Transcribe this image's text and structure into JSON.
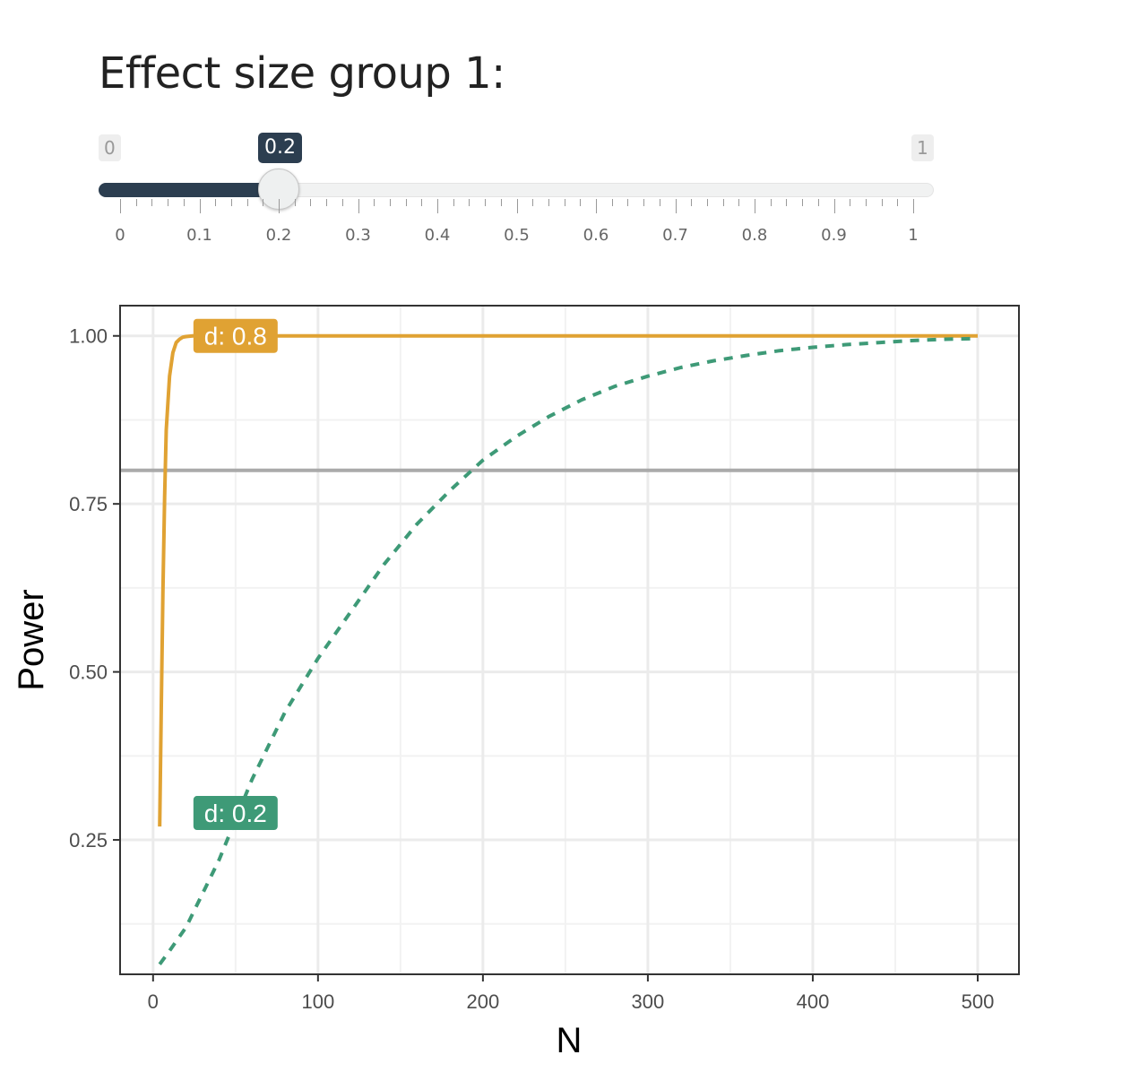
{
  "control": {
    "label": "Effect size group 1:",
    "min_label": "0",
    "max_label": "1",
    "value_label": "0.2",
    "min": 0,
    "max": 1,
    "value": 0.2,
    "tick_labels": [
      "0",
      "0.1",
      "0.2",
      "0.3",
      "0.4",
      "0.5",
      "0.6",
      "0.7",
      "0.8",
      "0.9",
      "1"
    ],
    "fill_color": "#2c3e50"
  },
  "chart_data": {
    "type": "line",
    "title": "",
    "xlabel": "N",
    "ylabel": "Power",
    "xlim": [
      -20,
      525
    ],
    "ylim": [
      0.05,
      1.045
    ],
    "x_ticks": [
      0,
      100,
      200,
      300,
      400,
      500
    ],
    "x_tick_labels": [
      "0",
      "100",
      "200",
      "300",
      "400",
      "500"
    ],
    "y_ticks": [
      0.25,
      0.5,
      0.75,
      1.0
    ],
    "y_tick_labels": [
      "0.25",
      "0.50",
      "0.75",
      "1.00"
    ],
    "grid": true,
    "reference_line": {
      "y": 0.8,
      "color": "#aaaaaa"
    },
    "series": [
      {
        "label": "d: 0.8",
        "color": "#e0a233",
        "style": "solid",
        "label_x": 50,
        "label_y": 1.0,
        "x": [
          4,
          5,
          6,
          7,
          8,
          10,
          12,
          14,
          16,
          18,
          20,
          24,
          28,
          35,
          50,
          100,
          200,
          300,
          400,
          500
        ],
        "y": [
          0.27,
          0.45,
          0.62,
          0.76,
          0.86,
          0.94,
          0.975,
          0.99,
          0.995,
          0.998,
          0.999,
          1.0,
          1.0,
          1.0,
          1.0,
          1.0,
          1.0,
          1.0,
          1.0,
          1.0
        ]
      },
      {
        "label": "d: 0.2",
        "color": "#3e9a77",
        "style": "dashed",
        "label_x": 50,
        "label_y": 0.29,
        "x": [
          4,
          10,
          20,
          30,
          40,
          50,
          60,
          70,
          80,
          90,
          100,
          120,
          140,
          160,
          180,
          200,
          220,
          240,
          260,
          280,
          300,
          320,
          340,
          360,
          380,
          400,
          420,
          440,
          460,
          480,
          500
        ],
        "y": [
          0.065,
          0.085,
          0.12,
          0.17,
          0.22,
          0.28,
          0.34,
          0.39,
          0.44,
          0.48,
          0.52,
          0.59,
          0.66,
          0.72,
          0.77,
          0.815,
          0.85,
          0.88,
          0.905,
          0.925,
          0.94,
          0.953,
          0.963,
          0.971,
          0.978,
          0.983,
          0.987,
          0.99,
          0.993,
          0.995,
          0.996
        ]
      }
    ]
  }
}
